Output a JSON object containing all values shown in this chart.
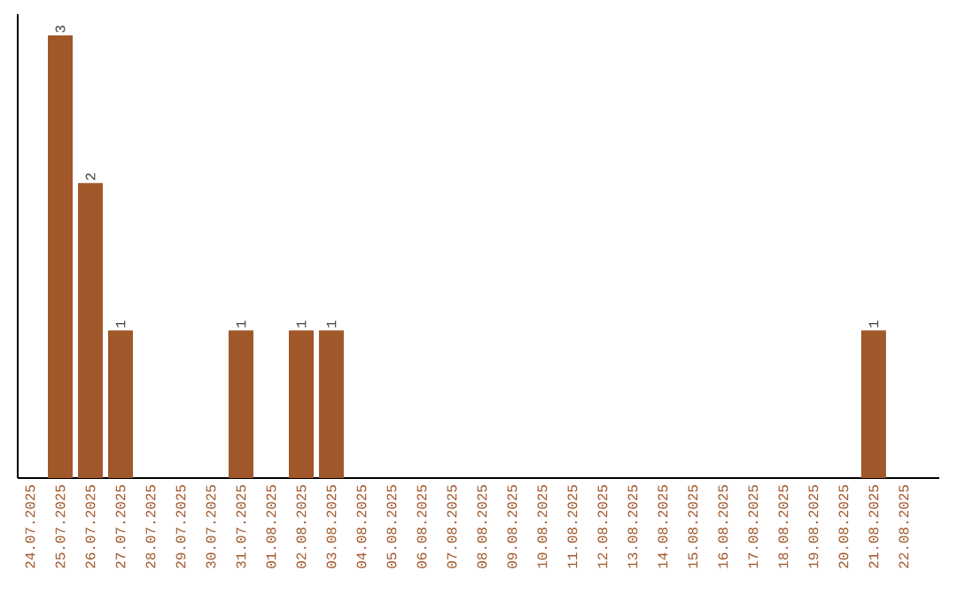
{
  "chart_data": {
    "type": "bar",
    "categories": [
      "24.07.2025",
      "25.07.2025",
      "26.07.2025",
      "27.07.2025",
      "28.07.2025",
      "29.07.2025",
      "30.07.2025",
      "31.07.2025",
      "01.08.2025",
      "02.08.2025",
      "03.08.2025",
      "04.08.2025",
      "05.08.2025",
      "06.08.2025",
      "07.08.2025",
      "08.08.2025",
      "09.08.2025",
      "10.08.2025",
      "11.08.2025",
      "12.08.2025",
      "13.08.2025",
      "14.08.2025",
      "15.08.2025",
      "16.08.2025",
      "17.08.2025",
      "18.08.2025",
      "19.08.2025",
      "20.08.2025",
      "21.08.2025",
      "22.08.2025"
    ],
    "values": [
      null,
      3,
      2,
      1,
      null,
      null,
      null,
      1,
      null,
      1,
      1,
      null,
      null,
      null,
      null,
      null,
      null,
      null,
      null,
      null,
      null,
      null,
      null,
      null,
      null,
      null,
      null,
      null,
      1,
      null
    ],
    "value_labels": [
      null,
      "3",
      "2",
      "1",
      null,
      null,
      null,
      "1",
      null,
      "1",
      "1",
      null,
      null,
      null,
      null,
      null,
      null,
      null,
      null,
      null,
      null,
      null,
      null,
      null,
      null,
      null,
      null,
      null,
      "1",
      null
    ],
    "color": "#a0572a",
    "grid": false,
    "legend": false
  }
}
